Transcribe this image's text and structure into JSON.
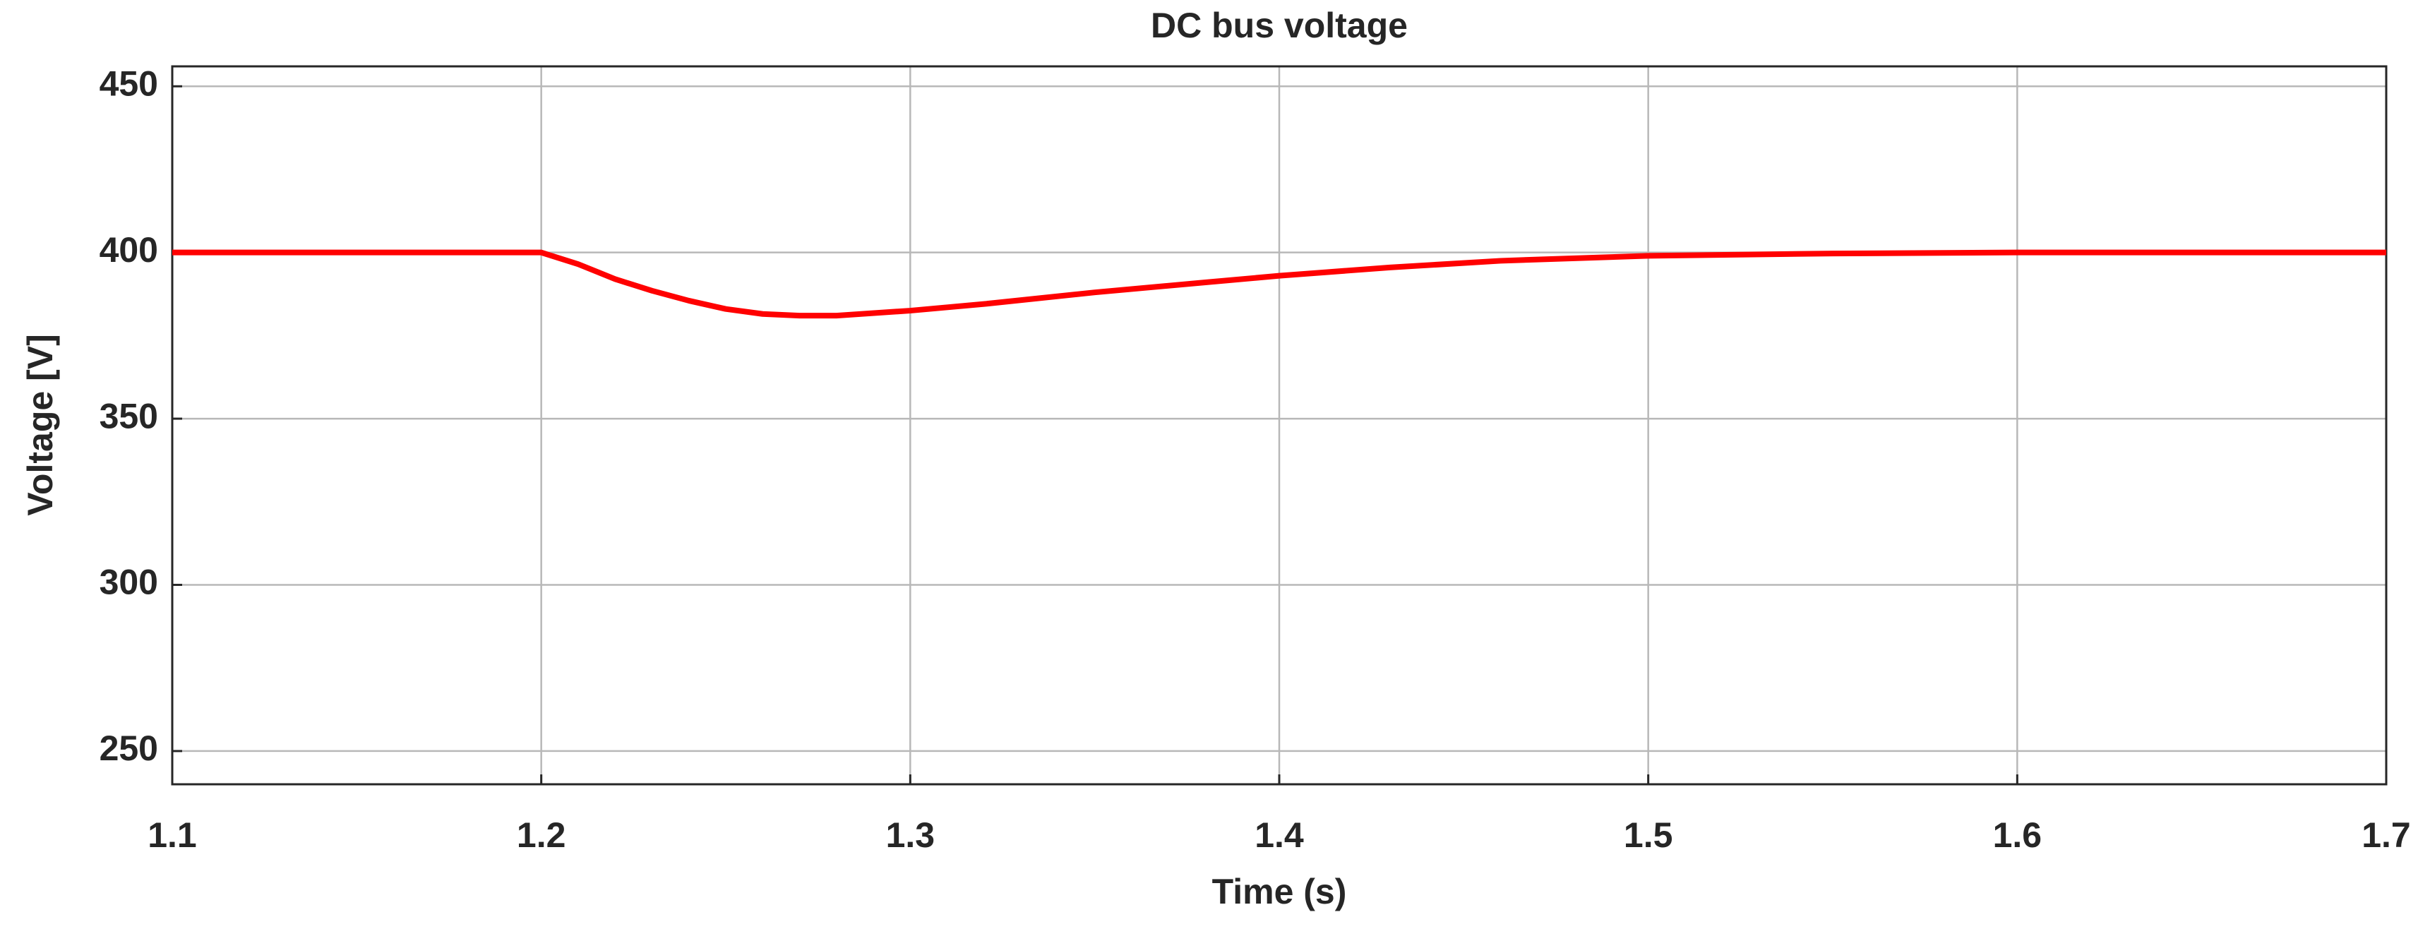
{
  "chart_data": {
    "type": "line",
    "title": "DC bus voltage",
    "xlabel": "Time (s)",
    "ylabel": "Voltage [V]",
    "x": [
      1.1,
      1.15,
      1.2,
      1.21,
      1.22,
      1.23,
      1.24,
      1.25,
      1.26,
      1.27,
      1.28,
      1.3,
      1.32,
      1.35,
      1.38,
      1.4,
      1.43,
      1.46,
      1.5,
      1.55,
      1.6,
      1.65,
      1.7
    ],
    "series": [
      {
        "color": "#ff0000",
        "values": [
          400,
          400,
          400,
          396.5,
          392,
          388.5,
          385.5,
          383,
          381.5,
          381,
          381,
          382.5,
          384.5,
          388,
          391,
          393,
          395.5,
          397.5,
          399,
          399.7,
          400,
          400,
          400
        ]
      }
    ],
    "xlim": [
      1.1,
      1.7
    ],
    "xticks": [
      1.1,
      1.2,
      1.3,
      1.4,
      1.5,
      1.6,
      1.7
    ],
    "ylim": [
      240,
      456
    ],
    "yticks": [
      250,
      300,
      350,
      400,
      450
    ],
    "grid": true
  }
}
